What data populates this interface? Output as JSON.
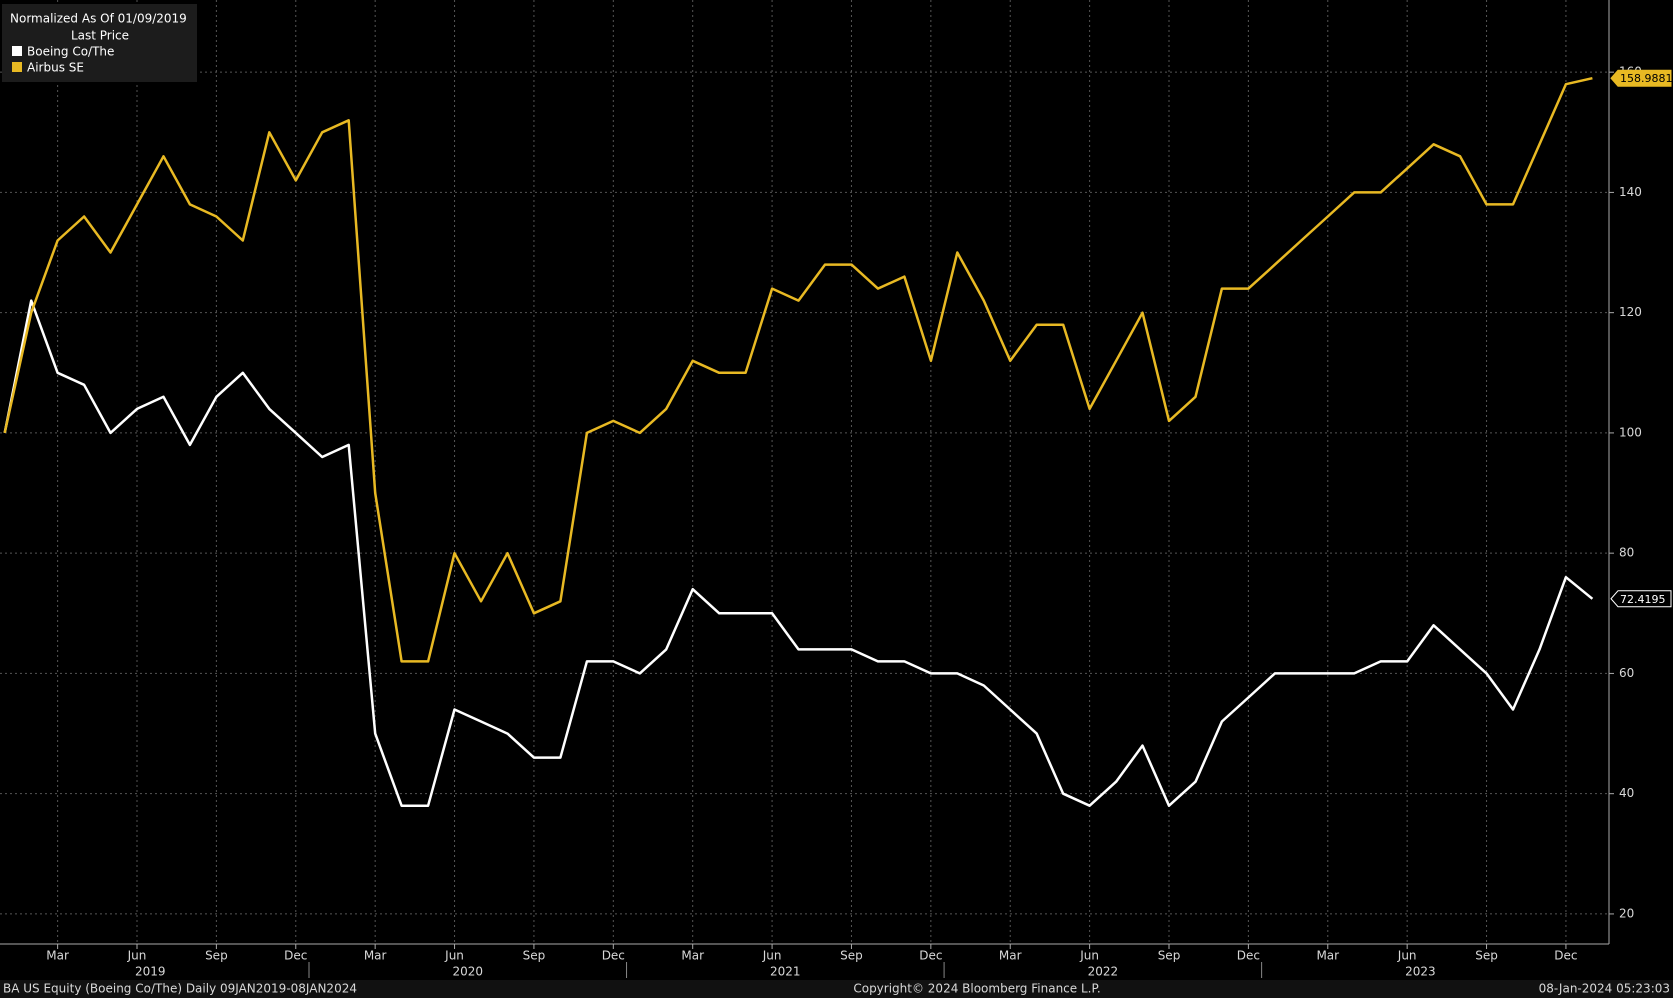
{
  "chart_data": {
    "type": "line",
    "title": "Normalized As Of 01/09/2019",
    "subtitle": "Last Price",
    "x": [
      "2019-01",
      "2019-02",
      "2019-03",
      "2019-04",
      "2019-05",
      "2019-06",
      "2019-07",
      "2019-08",
      "2019-09",
      "2019-10",
      "2019-11",
      "2019-12",
      "2020-01",
      "2020-02",
      "2020-03",
      "2020-04",
      "2020-05",
      "2020-06",
      "2020-07",
      "2020-08",
      "2020-09",
      "2020-10",
      "2020-11",
      "2020-12",
      "2021-01",
      "2021-02",
      "2021-03",
      "2021-04",
      "2021-05",
      "2021-06",
      "2021-07",
      "2021-08",
      "2021-09",
      "2021-10",
      "2021-11",
      "2021-12",
      "2022-01",
      "2022-02",
      "2022-03",
      "2022-04",
      "2022-05",
      "2022-06",
      "2022-07",
      "2022-08",
      "2022-09",
      "2022-10",
      "2022-11",
      "2022-12",
      "2023-01",
      "2023-02",
      "2023-03",
      "2023-04",
      "2023-05",
      "2023-06",
      "2023-07",
      "2023-08",
      "2023-09",
      "2023-10",
      "2023-11",
      "2023-12",
      "2024-01"
    ],
    "series": [
      {
        "name": "Boeing Co/The",
        "color": "#ffffff",
        "values": [
          100,
          122,
          110,
          108,
          100,
          104,
          106,
          98,
          106,
          110,
          104,
          100,
          96,
          98,
          50,
          38,
          38,
          54,
          52,
          50,
          46,
          46,
          62,
          62,
          60,
          64,
          74,
          70,
          70,
          70,
          64,
          64,
          64,
          62,
          62,
          60,
          60,
          58,
          54,
          50,
          40,
          38,
          42,
          48,
          38,
          42,
          52,
          56,
          60,
          60,
          60,
          60,
          62,
          62,
          68,
          64,
          60,
          54,
          64,
          76,
          72.4195
        ]
      },
      {
        "name": "Airbus SE",
        "color": "#e8b923",
        "values": [
          100,
          120,
          132,
          136,
          130,
          138,
          146,
          138,
          136,
          132,
          150,
          142,
          150,
          152,
          90,
          62,
          62,
          80,
          72,
          80,
          70,
          72,
          100,
          102,
          100,
          104,
          112,
          110,
          110,
          124,
          122,
          128,
          128,
          124,
          126,
          112,
          130,
          122,
          112,
          118,
          118,
          104,
          112,
          120,
          102,
          106,
          124,
          124,
          128,
          132,
          136,
          140,
          140,
          144,
          148,
          146,
          138,
          138,
          148,
          158,
          158.9881
        ]
      }
    ],
    "ylim": [
      15,
      172
    ],
    "yticks": [
      20,
      40,
      60,
      80,
      100,
      120,
      140,
      160
    ],
    "grid": true,
    "xticks": [
      {
        "value": "2019-03",
        "label": "Mar"
      },
      {
        "value": "2019-06",
        "label": "Jun"
      },
      {
        "value": "2019-09",
        "label": "Sep"
      },
      {
        "value": "2019-12",
        "label": "Dec"
      },
      {
        "value": "2020-03",
        "label": "Mar"
      },
      {
        "value": "2020-06",
        "label": "Jun"
      },
      {
        "value": "2020-09",
        "label": "Sep"
      },
      {
        "value": "2020-12",
        "label": "Dec"
      },
      {
        "value": "2021-03",
        "label": "Mar"
      },
      {
        "value": "2021-06",
        "label": "Jun"
      },
      {
        "value": "2021-09",
        "label": "Sep"
      },
      {
        "value": "2021-12",
        "label": "Dec"
      },
      {
        "value": "2022-03",
        "label": "Mar"
      },
      {
        "value": "2022-06",
        "label": "Jun"
      },
      {
        "value": "2022-09",
        "label": "Sep"
      },
      {
        "value": "2022-12",
        "label": "Dec"
      },
      {
        "value": "2023-03",
        "label": "Mar"
      },
      {
        "value": "2023-06",
        "label": "Jun"
      },
      {
        "value": "2023-09",
        "label": "Sep"
      },
      {
        "value": "2023-12",
        "label": "Dec"
      }
    ],
    "years": [
      "2019",
      "2020",
      "2021",
      "2022",
      "2023"
    ],
    "footer_left": "BA US Equity (Boeing Co/The)  Daily 09JAN2019-08JAN2024",
    "footer_center": "Copyright© 2024 Bloomberg Finance L.P.",
    "footer_right": "08-Jan-2024 05:23:03"
  }
}
